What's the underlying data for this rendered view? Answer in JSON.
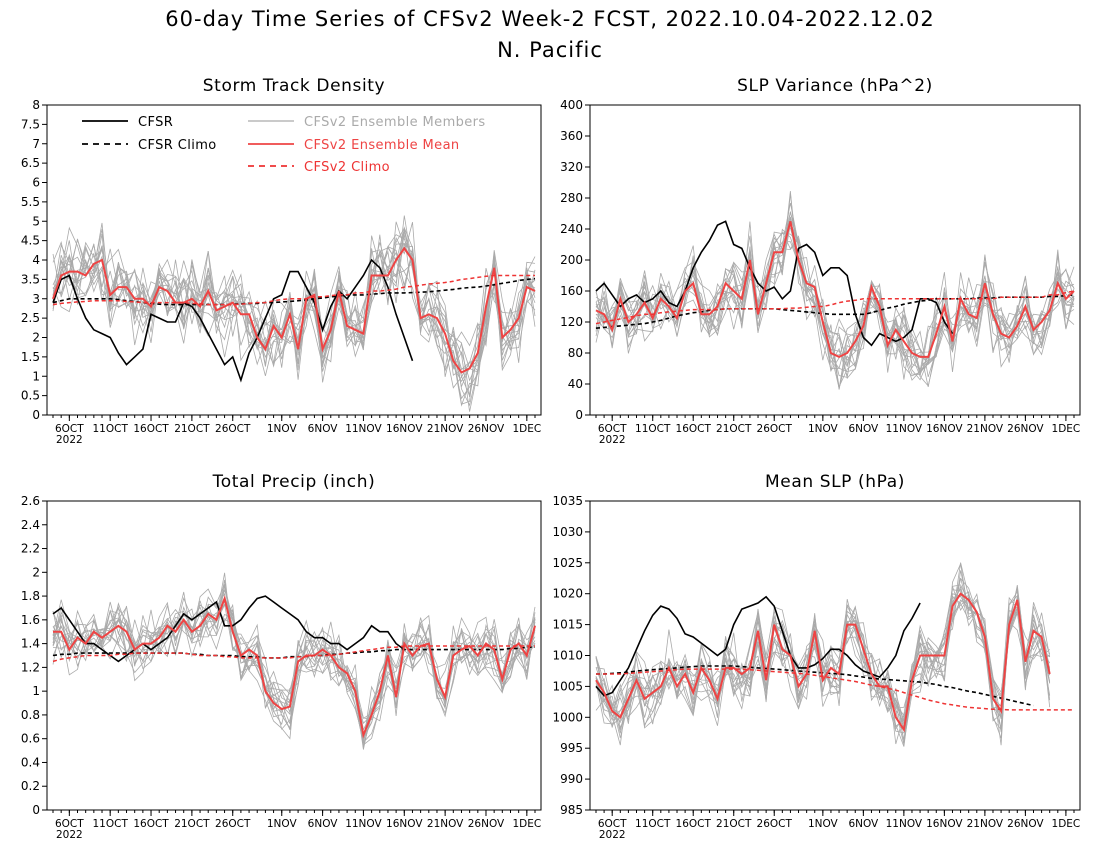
{
  "title_line1": "60-day Time Series of CFSv2 Week-2 FCST, 2022.10.04-2022.12.02",
  "title_line2": "N. Pacific",
  "colors": {
    "cfsr": "#000000",
    "members": "#aaaaaa",
    "ens_mean": "#ee4444",
    "cfsv2_climo": "#ee3333"
  },
  "legend": {
    "cfsr": "CFSR",
    "cfsr_climo": "CFSR Climo",
    "members": "CFSv2 Ensemble Members",
    "ens_mean": "CFSv2 Ensemble Mean",
    "cfsv2_climo": "CFSv2 Climo"
  },
  "x_tick_labels": [
    "6OCT",
    "11OCT",
    "16OCT",
    "21OCT",
    "26OCT",
    "1NOV",
    "6NOV",
    "11NOV",
    "16NOV",
    "21NOV",
    "26NOV",
    "1DEC"
  ],
  "x_tick_days": [
    2,
    7,
    12,
    17,
    22,
    28,
    33,
    38,
    43,
    48,
    53,
    58
  ],
  "x_year_label": "2022",
  "chart_data": [
    {
      "type": "line",
      "title": "Storm Track Density",
      "ylim": [
        0,
        8
      ],
      "yticks": [
        "0",
        "0.5",
        "1",
        "1.5",
        "2",
        "2.5",
        "3",
        "3.5",
        "4",
        "4.5",
        "5",
        "5.5",
        "6",
        "6.5",
        "7",
        "7.5",
        "8"
      ],
      "series": [
        {
          "name": "CFSR",
          "values": [
            2.9,
            3.5,
            3.6,
            3.0,
            2.5,
            2.2,
            2.1,
            2.0,
            1.6,
            1.3,
            1.5,
            1.7,
            2.6,
            2.5,
            2.4,
            2.4,
            2.9,
            2.8,
            2.5,
            2.1,
            1.7,
            1.3,
            1.5,
            0.9,
            1.6,
            2.0,
            2.5,
            3.0,
            3.1,
            3.7,
            3.7,
            3.3,
            2.9,
            2.2,
            2.8,
            3.2,
            3.0,
            3.3,
            3.6,
            4.0,
            3.8,
            3.3,
            2.6,
            2.0,
            1.4
          ]
        },
        {
          "name": "CFSR Climo",
          "values": [
            2.9,
            2.95,
            3.0,
            3.0,
            3.0,
            3.0,
            3.0,
            3.0,
            2.98,
            2.95,
            2.93,
            2.9,
            2.88,
            2.86,
            2.85,
            2.85,
            2.85,
            2.85,
            2.85,
            2.85,
            2.85,
            2.85,
            2.86,
            2.87,
            2.88,
            2.88,
            2.9,
            2.9,
            2.92,
            2.93,
            2.95,
            2.97,
            3.0,
            3.02,
            3.05,
            3.07,
            3.1,
            3.1,
            3.1,
            3.12,
            3.13,
            3.15,
            3.15,
            3.15,
            3.16,
            3.17,
            3.18,
            3.2,
            3.22,
            3.24,
            3.27,
            3.29,
            3.3,
            3.33,
            3.36,
            3.4,
            3.43,
            3.47,
            3.5,
            3.52
          ]
        },
        {
          "name": "CFSv2 Ensemble Mean",
          "values": [
            3.0,
            3.6,
            3.7,
            3.7,
            3.6,
            3.9,
            4.0,
            3.1,
            3.3,
            3.3,
            3.0,
            3.0,
            2.8,
            3.3,
            3.2,
            2.9,
            2.9,
            3.0,
            2.8,
            3.2,
            2.7,
            2.8,
            2.9,
            2.6,
            2.6,
            2.0,
            1.7,
            2.3,
            2.0,
            2.6,
            1.7,
            3.0,
            3.1,
            1.7,
            2.2,
            3.2,
            2.3,
            2.2,
            2.1,
            3.6,
            3.6,
            3.6,
            4.0,
            4.3,
            4.0,
            2.5,
            2.6,
            2.5,
            2.1,
            1.4,
            1.1,
            1.2,
            1.6,
            2.8,
            3.8,
            2.0,
            2.2,
            2.5,
            3.3,
            3.2
          ]
        },
        {
          "name": "CFSv2 Climo",
          "values": [
            2.85,
            2.88,
            2.9,
            2.92,
            2.93,
            2.95,
            2.95,
            2.95,
            2.95,
            2.93,
            2.92,
            2.9,
            2.9,
            2.9,
            2.9,
            2.9,
            2.9,
            2.88,
            2.87,
            2.85,
            2.85,
            2.85,
            2.85,
            2.86,
            2.88,
            2.9,
            2.9,
            2.95,
            2.98,
            3.0,
            3.0,
            3.0,
            3.05,
            3.05,
            3.08,
            3.1,
            3.1,
            3.15,
            3.15,
            3.2,
            3.2,
            3.22,
            3.25,
            3.3,
            3.32,
            3.35,
            3.38,
            3.4,
            3.42,
            3.45,
            3.5,
            3.52,
            3.55,
            3.58,
            3.6,
            3.6,
            3.6,
            3.6,
            3.6,
            3.6
          ]
        }
      ]
    },
    {
      "type": "line",
      "title": "SLP Variance (hPa^2)",
      "ylim": [
        0,
        400
      ],
      "yticks": [
        "0",
        "40",
        "80",
        "120",
        "160",
        "200",
        "240",
        "280",
        "320",
        "360",
        "400"
      ],
      "series": [
        {
          "name": "CFSR",
          "values": [
            160,
            170,
            155,
            140,
            150,
            155,
            145,
            150,
            160,
            145,
            140,
            160,
            190,
            210,
            225,
            245,
            250,
            220,
            215,
            190,
            170,
            160,
            165,
            150,
            160,
            215,
            220,
            210,
            180,
            190,
            190,
            180,
            130,
            100,
            90,
            105,
            100,
            95,
            100,
            110,
            150,
            150,
            145,
            120,
            105
          ]
        },
        {
          "name": "CFSR Climo",
          "values": [
            112,
            113,
            114,
            115,
            116,
            117,
            118,
            120,
            122,
            125,
            128,
            130,
            132,
            133,
            135,
            136,
            137,
            137,
            137,
            137,
            137,
            137,
            137,
            136,
            135,
            134,
            133,
            132,
            131,
            130,
            130,
            130,
            130,
            130,
            132,
            135,
            138,
            140,
            143,
            145,
            147,
            148,
            150,
            150,
            150,
            150,
            150,
            151,
            151,
            151,
            152,
            152,
            152,
            152,
            152,
            152,
            153,
            153,
            154,
            155
          ]
        },
        {
          "name": "CFSv2 Ensemble Mean",
          "values": [
            135,
            130,
            110,
            150,
            120,
            130,
            145,
            125,
            150,
            140,
            125,
            160,
            170,
            130,
            130,
            140,
            170,
            160,
            150,
            200,
            130,
            170,
            210,
            210,
            250,
            200,
            170,
            165,
            120,
            80,
            75,
            80,
            95,
            115,
            165,
            140,
            90,
            110,
            95,
            80,
            75,
            75,
            105,
            140,
            95,
            150,
            130,
            125,
            170,
            130,
            105,
            100,
            115,
            140,
            110,
            120,
            135,
            170,
            150,
            160
          ]
        },
        {
          "name": "CFSv2 Climo",
          "values": [
            118,
            120,
            122,
            124,
            126,
            128,
            130,
            130,
            132,
            133,
            134,
            135,
            136,
            136,
            136,
            136,
            137,
            137,
            137,
            137,
            137,
            137,
            137,
            137,
            138,
            138,
            139,
            140,
            140,
            142,
            145,
            147,
            148,
            150,
            150,
            150,
            150,
            150,
            150,
            150,
            150,
            150,
            150,
            150,
            150,
            150,
            150,
            150,
            150,
            150,
            152,
            152,
            152,
            152,
            152,
            152,
            155,
            155,
            158,
            160
          ]
        }
      ]
    },
    {
      "type": "line",
      "title": "Total Precip (inch)",
      "ylim": [
        0,
        2.6
      ],
      "yticks": [
        "0",
        "0.2",
        "0.4",
        "0.6",
        "0.8",
        "1",
        "1.2",
        "1.4",
        "1.6",
        "1.8",
        "2",
        "2.2",
        "2.4",
        "2.6"
      ],
      "series": [
        {
          "name": "CFSR",
          "values": [
            1.65,
            1.7,
            1.6,
            1.5,
            1.4,
            1.4,
            1.35,
            1.3,
            1.25,
            1.3,
            1.35,
            1.4,
            1.35,
            1.4,
            1.45,
            1.55,
            1.65,
            1.6,
            1.65,
            1.7,
            1.75,
            1.55,
            1.55,
            1.6,
            1.7,
            1.78,
            1.8,
            1.75,
            1.7,
            1.65,
            1.6,
            1.5,
            1.45,
            1.45,
            1.4,
            1.4,
            1.35,
            1.4,
            1.45,
            1.55,
            1.5,
            1.5,
            1.4,
            1.35
          ]
        },
        {
          "name": "CFSR Climo",
          "values": [
            1.3,
            1.31,
            1.31,
            1.32,
            1.32,
            1.32,
            1.32,
            1.32,
            1.32,
            1.32,
            1.32,
            1.32,
            1.32,
            1.32,
            1.32,
            1.32,
            1.32,
            1.31,
            1.31,
            1.3,
            1.3,
            1.3,
            1.3,
            1.29,
            1.29,
            1.29,
            1.28,
            1.28,
            1.28,
            1.29,
            1.29,
            1.29,
            1.3,
            1.3,
            1.31,
            1.31,
            1.32,
            1.32,
            1.33,
            1.33,
            1.34,
            1.34,
            1.35,
            1.35,
            1.35,
            1.35,
            1.35,
            1.35,
            1.35,
            1.35,
            1.35,
            1.35,
            1.35,
            1.35,
            1.35,
            1.35,
            1.36,
            1.36,
            1.37,
            1.37
          ]
        },
        {
          "name": "CFSv2 Ensemble Mean",
          "values": [
            1.5,
            1.5,
            1.35,
            1.45,
            1.4,
            1.5,
            1.45,
            1.5,
            1.55,
            1.5,
            1.35,
            1.4,
            1.4,
            1.45,
            1.55,
            1.5,
            1.6,
            1.5,
            1.55,
            1.65,
            1.6,
            1.78,
            1.5,
            1.3,
            1.35,
            1.3,
            1.0,
            0.9,
            0.85,
            0.87,
            1.25,
            1.3,
            1.3,
            1.35,
            1.3,
            1.2,
            1.15,
            1.0,
            0.63,
            0.8,
            1.0,
            1.3,
            0.95,
            1.4,
            1.3,
            1.38,
            1.4,
            1.1,
            0.95,
            1.3,
            1.35,
            1.38,
            1.3,
            1.4,
            1.35,
            1.1,
            1.35,
            1.4,
            1.3,
            1.55
          ]
        },
        {
          "name": "CFSv2 Climo",
          "values": [
            1.25,
            1.27,
            1.28,
            1.29,
            1.3,
            1.3,
            1.3,
            1.3,
            1.31,
            1.31,
            1.32,
            1.32,
            1.32,
            1.32,
            1.32,
            1.32,
            1.32,
            1.31,
            1.3,
            1.3,
            1.3,
            1.29,
            1.29,
            1.28,
            1.28,
            1.28,
            1.28,
            1.28,
            1.28,
            1.28,
            1.29,
            1.29,
            1.3,
            1.3,
            1.3,
            1.31,
            1.32,
            1.33,
            1.34,
            1.35,
            1.36,
            1.37,
            1.37,
            1.38,
            1.38,
            1.38,
            1.38,
            1.38,
            1.38,
            1.38,
            1.38,
            1.38,
            1.38,
            1.38,
            1.38,
            1.38,
            1.38,
            1.38,
            1.38,
            1.38
          ]
        }
      ]
    },
    {
      "type": "line",
      "title": "Mean SLP (hPa)",
      "ylim": [
        985,
        1035
      ],
      "yticks": [
        "985",
        "990",
        "995",
        "1000",
        "1005",
        "1010",
        "1015",
        "1020",
        "1025",
        "1030",
        "1035"
      ],
      "series": [
        {
          "name": "CFSR",
          "values": [
            1005,
            1003.5,
            1004,
            1006,
            1008,
            1011,
            1014,
            1016.5,
            1018,
            1017.5,
            1016,
            1013.5,
            1013,
            1012,
            1011,
            1010,
            1011,
            1015,
            1017.5,
            1018,
            1018.5,
            1019.5,
            1018,
            1014,
            1010,
            1008,
            1008,
            1008.5,
            1009.5,
            1011,
            1011,
            1010,
            1008.5,
            1007.5,
            1007,
            1006.5,
            1008,
            1010,
            1014,
            1016,
            1018.5
          ]
        },
        {
          "name": "CFSR Climo",
          "values": [
            1007,
            1007,
            1007.1,
            1007.2,
            1007.3,
            1007.5,
            1007.6,
            1007.7,
            1007.8,
            1007.9,
            1008,
            1008.1,
            1008.2,
            1008.3,
            1008.3,
            1008.3,
            1008.3,
            1008.3,
            1008.2,
            1008.1,
            1008,
            1007.9,
            1007.8,
            1007.7,
            1007.6,
            1007.5,
            1007.4,
            1007.3,
            1007.2,
            1007.1,
            1007,
            1006.9,
            1006.7,
            1006.5,
            1006.3,
            1006.2,
            1006.1,
            1006,
            1005.9,
            1005.8,
            1005.7,
            1005.5,
            1005.3,
            1005,
            1004.8,
            1004.5,
            1004.2,
            1004,
            1003.7,
            1003.4,
            1003.1,
            1002.8,
            1002.5,
            1002.2,
            1001.9
          ]
        },
        {
          "name": "CFSv2 Ensemble Mean",
          "values": [
            1006,
            1004,
            1001,
            1000,
            1003,
            1006,
            1003,
            1004,
            1005,
            1008,
            1005,
            1007,
            1004,
            1008,
            1006,
            1003,
            1008,
            1008,
            1007,
            1008,
            1014,
            1006,
            1015,
            1011,
            1010,
            1005,
            1007,
            1014,
            1006,
            1008,
            1007,
            1015,
            1015,
            1011,
            1007,
            1005,
            1005,
            1000,
            998,
            1006,
            1010,
            1010,
            1010,
            1010,
            1018,
            1020,
            1019,
            1017,
            1013,
            1003,
            1001,
            1015,
            1019,
            1009,
            1014,
            1013,
            1007
          ]
        },
        {
          "name": "CFSv2 Climo",
          "values": [
            1007,
            1007,
            1007,
            1007,
            1007.1,
            1007.2,
            1007.3,
            1007.4,
            1007.5,
            1007.6,
            1007.7,
            1007.8,
            1007.8,
            1007.8,
            1007.8,
            1007.8,
            1007.8,
            1007.8,
            1007.8,
            1007.7,
            1007.6,
            1007.5,
            1007.4,
            1007.3,
            1007.2,
            1007.1,
            1007,
            1006.8,
            1006.6,
            1006.4,
            1006.2,
            1006,
            1005.8,
            1005.5,
            1005.2,
            1005,
            1004.7,
            1004.4,
            1004,
            1003.6,
            1003.2,
            1002.8,
            1002.5,
            1002.2,
            1002,
            1001.8,
            1001.6,
            1001.5,
            1001.4,
            1001.3,
            1001.3,
            1001.2,
            1001.2,
            1001.2,
            1001.2,
            1001.2,
            1001.2,
            1001.2,
            1001.2,
            1001.2
          ]
        }
      ]
    }
  ]
}
